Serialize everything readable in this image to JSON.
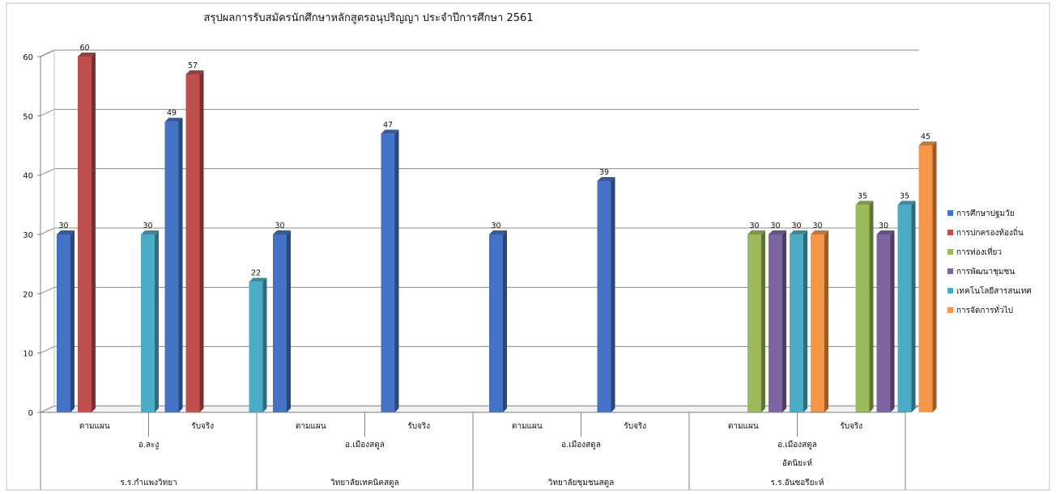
{
  "chart_data": {
    "type": "bar",
    "title": "สรุปผลการรับสมัครนักศึกษาหลักสูตรอนุปริญญา   ประจำปีการศึกษา   2561",
    "ylim": [
      0,
      60
    ],
    "yticks": [
      0,
      10,
      20,
      30,
      40,
      50,
      60
    ],
    "grid": true,
    "legend_position": "right",
    "categories": [
      "ตามแผน",
      "รับจริง",
      "ตามแผน",
      "รับจริง",
      "ตามแผน",
      "รับจริง",
      "ตามแผน",
      "รับจริง"
    ],
    "group_level_1": [
      {
        "label": "อ.ละงู",
        "span": 2
      },
      {
        "label": "อ.เมืองสตูล",
        "span": 2
      },
      {
        "label": "อ.เมืองสตูล",
        "span": 2
      },
      {
        "label": "อ.เมืองสตูล",
        "span": 2
      }
    ],
    "group_level_2": [
      {
        "label": "",
        "span": 2
      },
      {
        "label": "",
        "span": 2
      },
      {
        "label": "",
        "span": 2
      },
      {
        "label": "อัตนิยะห์",
        "span": 2
      }
    ],
    "group_level_3": [
      {
        "label": "ร.ร.กำแพงวิทยา",
        "span": 2
      },
      {
        "label": "วิทยาลัยเทคนิคสตูล",
        "span": 2
      },
      {
        "label": "วิทยาลัยชุมชนสตูล",
        "span": 2
      },
      {
        "label": "ร.ร.อันซอรียะห์",
        "span": 2
      }
    ],
    "series": [
      {
        "name": "การศึกษาปฐมวัย",
        "color": "#4472C4",
        "values": [
          30,
          49,
          30,
          47,
          30,
          39,
          null,
          null
        ]
      },
      {
        "name": "การปกครองท้องถิ่น",
        "color": "#C0504D",
        "values": [
          60,
          57,
          null,
          null,
          null,
          null,
          null,
          null
        ]
      },
      {
        "name": "การท่องเที่ยว",
        "color": "#9BBB59",
        "values": [
          null,
          null,
          null,
          null,
          null,
          null,
          30,
          35
        ]
      },
      {
        "name": "การพัฒนาชุมชน",
        "color": "#8064A2",
        "values": [
          null,
          null,
          null,
          null,
          null,
          null,
          30,
          30
        ]
      },
      {
        "name": "เทคโนโลยีสารสนเทศ",
        "color": "#4BACC6",
        "values": [
          30,
          22,
          null,
          null,
          null,
          null,
          30,
          35
        ]
      },
      {
        "name": "การจัดการทั่วไป",
        "color": "#F79646",
        "values": [
          null,
          null,
          null,
          null,
          null,
          null,
          30,
          45
        ]
      }
    ]
  }
}
